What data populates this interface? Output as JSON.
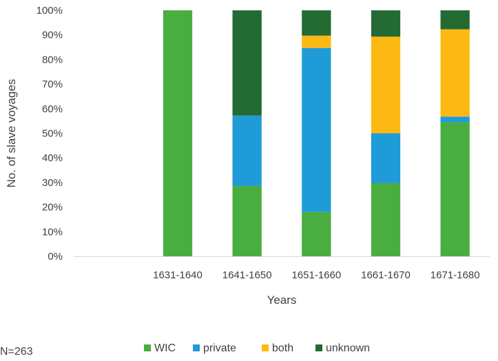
{
  "chart_data": {
    "type": "bar",
    "stacked": true,
    "percent_stacked": true,
    "categories": [
      "",
      "1631-1640",
      "1641-1650",
      "1651-1660",
      "1661-1670",
      "1671-1680"
    ],
    "series": [
      {
        "name": "WIC",
        "color": "#4aad3f",
        "values": [
          0,
          100,
          28.6,
          18.0,
          29.7,
          54.5
        ]
      },
      {
        "name": "private",
        "color": "#1f9bd7",
        "values": [
          0,
          0,
          28.6,
          66.7,
          20.3,
          2.3
        ]
      },
      {
        "name": "both",
        "color": "#fdb913",
        "values": [
          0,
          0,
          0,
          5.0,
          39.3,
          35.5
        ]
      },
      {
        "name": "unknown",
        "color": "#236b32",
        "values": [
          0,
          0,
          42.8,
          10.3,
          10.7,
          7.7
        ]
      }
    ],
    "ylabel": "No. of slave voyages",
    "xlabel": "Years",
    "ylim": [
      0,
      100
    ],
    "yticks": [
      "0%",
      "10%",
      "20%",
      "30%",
      "40%",
      "50%",
      "60%",
      "70%",
      "80%",
      "90%",
      "100%"
    ],
    "grid": false,
    "legend": "bottom"
  },
  "note": "N=263"
}
